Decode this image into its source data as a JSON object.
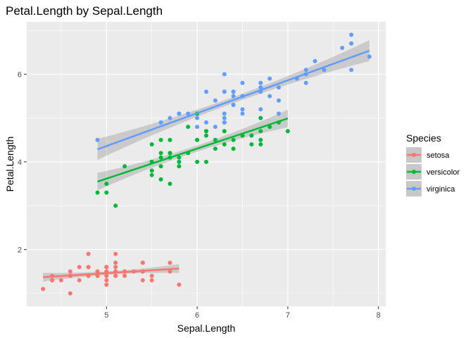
{
  "chart_data": {
    "type": "scatter",
    "title": "Petal.Length by Sepal.Length",
    "xlabel": "Sepal.Length",
    "ylabel": "Petal.Length",
    "xlim": [
      4.12,
      8.08
    ],
    "ylim": [
      0.705,
      7.195
    ],
    "xticks": [
      5,
      6,
      7,
      8
    ],
    "yticks": [
      2,
      4,
      6
    ],
    "grid": true,
    "legend": {
      "title": "Species",
      "position": "right"
    },
    "series": [
      {
        "name": "setosa",
        "color": "#F8766D",
        "fit": {
          "intercept": 0.803,
          "slope": 0.1316,
          "x_range": [
            4.3,
            5.8
          ]
        },
        "band_halfwidth": [
          0.1,
          0.04,
          0.1
        ],
        "points": [
          [
            4.3,
            1.1
          ],
          [
            4.4,
            1.4
          ],
          [
            4.4,
            1.3
          ],
          [
            4.4,
            1.3
          ],
          [
            4.5,
            1.3
          ],
          [
            4.6,
            1.4
          ],
          [
            4.6,
            1.0
          ],
          [
            4.6,
            1.5
          ],
          [
            4.6,
            1.4
          ],
          [
            4.7,
            1.3
          ],
          [
            4.7,
            1.6
          ],
          [
            4.8,
            1.6
          ],
          [
            4.8,
            1.4
          ],
          [
            4.8,
            1.9
          ],
          [
            4.8,
            1.4
          ],
          [
            4.8,
            1.6
          ],
          [
            4.9,
            1.4
          ],
          [
            4.9,
            1.5
          ],
          [
            4.9,
            1.5
          ],
          [
            4.9,
            1.4
          ],
          [
            5.0,
            1.4
          ],
          [
            5.0,
            1.5
          ],
          [
            5.0,
            1.6
          ],
          [
            5.0,
            1.2
          ],
          [
            5.0,
            1.3
          ],
          [
            5.0,
            1.6
          ],
          [
            5.0,
            1.4
          ],
          [
            5.0,
            1.5
          ],
          [
            5.1,
            1.4
          ],
          [
            5.1,
            1.5
          ],
          [
            5.1,
            1.7
          ],
          [
            5.1,
            1.5
          ],
          [
            5.1,
            1.5
          ],
          [
            5.1,
            1.9
          ],
          [
            5.1,
            1.6
          ],
          [
            5.1,
            1.4
          ],
          [
            5.2,
            1.5
          ],
          [
            5.2,
            1.5
          ],
          [
            5.2,
            1.4
          ],
          [
            5.3,
            1.5
          ],
          [
            5.4,
            1.7
          ],
          [
            5.4,
            1.5
          ],
          [
            5.4,
            1.7
          ],
          [
            5.4,
            1.5
          ],
          [
            5.4,
            1.3
          ],
          [
            5.5,
            1.3
          ],
          [
            5.5,
            1.4
          ],
          [
            5.7,
            1.5
          ],
          [
            5.7,
            1.7
          ],
          [
            5.8,
            1.2
          ]
        ]
      },
      {
        "name": "versicolor",
        "color": "#00BA38",
        "fit": {
          "intercept": 0.185,
          "slope": 0.6865,
          "x_range": [
            4.9,
            7.0
          ]
        },
        "band_halfwidth": [
          0.2,
          0.07,
          0.2
        ],
        "points": [
          [
            4.9,
            3.3
          ],
          [
            5.0,
            3.5
          ],
          [
            5.0,
            3.3
          ],
          [
            5.1,
            3.0
          ],
          [
            5.2,
            3.9
          ],
          [
            5.5,
            4.0
          ],
          [
            5.5,
            3.7
          ],
          [
            5.5,
            3.8
          ],
          [
            5.5,
            4.4
          ],
          [
            5.5,
            4.0
          ],
          [
            5.6,
            4.5
          ],
          [
            5.6,
            3.6
          ],
          [
            5.6,
            3.9
          ],
          [
            5.6,
            4.2
          ],
          [
            5.6,
            4.1
          ],
          [
            5.7,
            4.5
          ],
          [
            5.7,
            3.5
          ],
          [
            5.7,
            4.2
          ],
          [
            5.7,
            4.2
          ],
          [
            5.7,
            4.1
          ],
          [
            5.8,
            4.1
          ],
          [
            5.8,
            3.9
          ],
          [
            5.8,
            4.0
          ],
          [
            5.9,
            4.8
          ],
          [
            5.9,
            4.2
          ],
          [
            6.0,
            4.5
          ],
          [
            6.0,
            4.0
          ],
          [
            6.0,
            5.1
          ],
          [
            6.0,
            4.5
          ],
          [
            6.1,
            4.7
          ],
          [
            6.1,
            4.0
          ],
          [
            6.1,
            4.7
          ],
          [
            6.1,
            4.6
          ],
          [
            6.2,
            4.5
          ],
          [
            6.2,
            4.3
          ],
          [
            6.3,
            4.9
          ],
          [
            6.3,
            4.7
          ],
          [
            6.3,
            4.4
          ],
          [
            6.4,
            4.5
          ],
          [
            6.4,
            4.3
          ],
          [
            6.5,
            4.6
          ],
          [
            6.6,
            4.6
          ],
          [
            6.6,
            4.4
          ],
          [
            6.7,
            4.7
          ],
          [
            6.7,
            4.4
          ],
          [
            6.7,
            5.0
          ],
          [
            6.7,
            4.5
          ],
          [
            6.8,
            4.8
          ],
          [
            6.9,
            4.9
          ],
          [
            7.0,
            4.7
          ]
        ]
      },
      {
        "name": "virginica",
        "color": "#619CFF",
        "fit": {
          "intercept": 0.6105,
          "slope": 0.7501,
          "x_range": [
            4.9,
            7.9
          ]
        },
        "band_halfwidth": [
          0.24,
          0.07,
          0.24
        ],
        "points": [
          [
            4.9,
            4.5
          ],
          [
            5.6,
            4.9
          ],
          [
            5.7,
            5.0
          ],
          [
            5.8,
            5.1
          ],
          [
            5.8,
            5.1
          ],
          [
            5.8,
            5.1
          ],
          [
            5.9,
            5.1
          ],
          [
            6.0,
            5.0
          ],
          [
            6.0,
            4.8
          ],
          [
            6.1,
            5.6
          ],
          [
            6.1,
            4.9
          ],
          [
            6.2,
            5.4
          ],
          [
            6.2,
            4.8
          ],
          [
            6.3,
            6.0
          ],
          [
            6.3,
            5.1
          ],
          [
            6.3,
            5.6
          ],
          [
            6.3,
            5.0
          ],
          [
            6.3,
            4.9
          ],
          [
            6.3,
            5.6
          ],
          [
            6.4,
            5.5
          ],
          [
            6.4,
            5.3
          ],
          [
            6.4,
            5.6
          ],
          [
            6.4,
            5.3
          ],
          [
            6.4,
            5.6
          ],
          [
            6.5,
            5.8
          ],
          [
            6.5,
            5.1
          ],
          [
            6.5,
            5.5
          ],
          [
            6.5,
            5.2
          ],
          [
            6.7,
            5.8
          ],
          [
            6.7,
            5.7
          ],
          [
            6.7,
            5.6
          ],
          [
            6.7,
            5.2
          ],
          [
            6.8,
            5.5
          ],
          [
            6.8,
            5.9
          ],
          [
            6.9,
            5.1
          ],
          [
            6.9,
            5.4
          ],
          [
            6.9,
            5.7
          ],
          [
            7.1,
            5.9
          ],
          [
            7.2,
            6.1
          ],
          [
            7.2,
            6.0
          ],
          [
            7.2,
            5.8
          ],
          [
            7.3,
            6.3
          ],
          [
            7.4,
            6.1
          ],
          [
            7.6,
            6.6
          ],
          [
            7.7,
            6.7
          ],
          [
            7.7,
            6.9
          ],
          [
            7.7,
            6.7
          ],
          [
            7.7,
            6.1
          ],
          [
            7.9,
            6.4
          ]
        ]
      }
    ]
  }
}
